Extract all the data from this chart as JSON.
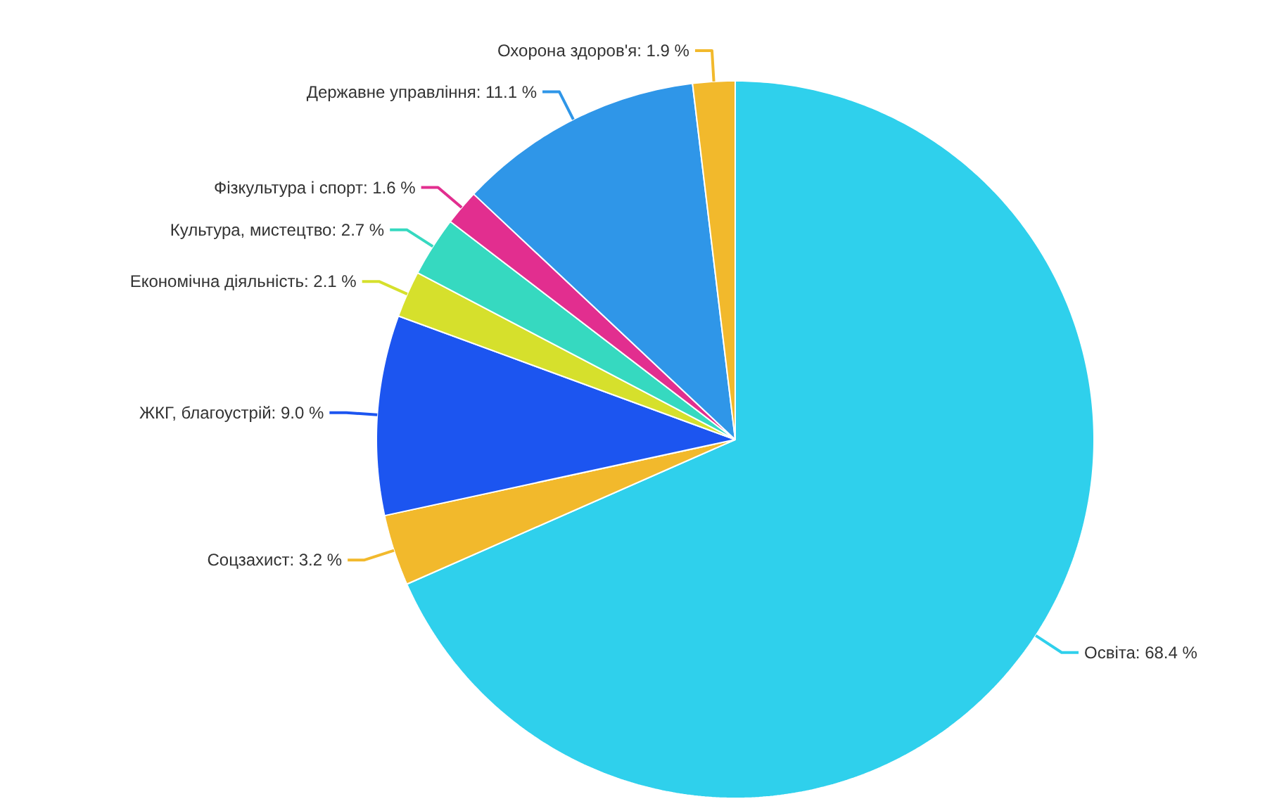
{
  "chart_data": {
    "type": "pie",
    "categories": [
      "Освіта",
      "Соцзахист",
      "ЖКГ, благоустрій",
      "Економічна діяльність",
      "Культура, мистецтво",
      "Фізкультура і спорт",
      "Державне управління",
      "Охорона здоров'я"
    ],
    "values": [
      68.4,
      3.2,
      9.0,
      2.1,
      2.7,
      1.6,
      11.1,
      1.9
    ],
    "value_labels": [
      "68.4 %",
      "3.2 %",
      "9.0 %",
      "2.1 %",
      "2.7 %",
      "1.6 %",
      "11.1 %",
      "1.9 %"
    ],
    "colors": [
      "#2fd0ec",
      "#f2b92c",
      "#1c55f0",
      "#d6e02c",
      "#36d9c0",
      "#e22e8f",
      "#2f96e8",
      "#f2b92c"
    ]
  }
}
